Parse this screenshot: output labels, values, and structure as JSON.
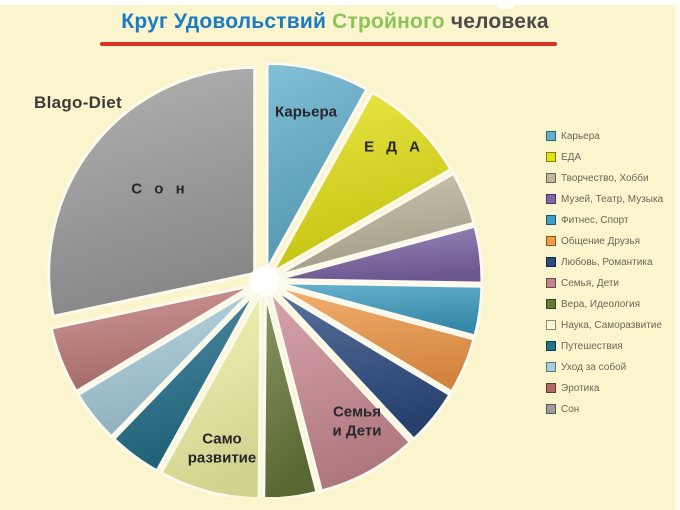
{
  "slide": {
    "background": "#FAF5CD",
    "watermark": "Blago-Diet"
  },
  "title": {
    "part_blue": "Круг Удовольствий",
    "part_green": "Стройного",
    "part_dark": "человека",
    "full": "Круг Удовольствий Стройного человека",
    "colors": {
      "blue": "#1B7BC4",
      "green": "#8FC25B",
      "dark": "#4D4B49",
      "underline": "#DC3124"
    }
  },
  "pie_labels": {
    "career": "Карьера",
    "food": "Е Д А",
    "sleep": "С о н",
    "family": "Семья\nи Дети",
    "selfdev": "Само\nразвитие"
  },
  "legend": {
    "position": "right",
    "items": [
      {
        "key": "career",
        "label": "Карьера",
        "color": "#5FAECB"
      },
      {
        "key": "food",
        "label": "ЕДА",
        "color": "#E4E112"
      },
      {
        "key": "creativity",
        "label": "Творчество, Хобби",
        "color": "#BEB69D"
      },
      {
        "key": "museum",
        "label": "Музей, Театр, Музыка",
        "color": "#7D66A7"
      },
      {
        "key": "fitness",
        "label": "Фитнес, Спорт",
        "color": "#3E9EC2"
      },
      {
        "key": "friends",
        "label": "Общение Друзья",
        "color": "#F49B49"
      },
      {
        "key": "love",
        "label": "Любовь, Романтика",
        "color": "#2C4C80"
      },
      {
        "key": "family",
        "label": "Семья, Дети",
        "color": "#C2838C"
      },
      {
        "key": "faith",
        "label": "Вера, Идеология",
        "color": "#66793A"
      },
      {
        "key": "selfdev",
        "label": "Наука, Саморазвитие",
        "color": "#FAFAD8"
      },
      {
        "key": "travel",
        "label": "Путешествия",
        "color": "#23708A"
      },
      {
        "key": "selfcare",
        "label": "Уход за собой",
        "color": "#A8CDDC"
      },
      {
        "key": "erotica",
        "label": "Эротика",
        "color": "#B06A66"
      },
      {
        "key": "sleep",
        "label": "Сон",
        "color": "#9D9D9D"
      }
    ]
  },
  "chart_data": {
    "type": "pie",
    "title": "Круг Удовольствий Стройного человека",
    "legend_position": "right",
    "style": "exploded pie, white gaps between slices, clockwise from 12 o'clock",
    "units": "percent of circle, estimated from slice angles",
    "slices": [
      {
        "key": "career",
        "label": "Карьера",
        "color": "#5FAECB",
        "start_deg": 0,
        "end_deg": 29,
        "value_pct": 8.1
      },
      {
        "key": "food",
        "label": "ЕДА",
        "color": "#E4E112",
        "start_deg": 29,
        "end_deg": 60,
        "value_pct": 8.6
      },
      {
        "key": "creativity",
        "label": "Творчество, Хобби",
        "color": "#BEB69D",
        "start_deg": 60,
        "end_deg": 75,
        "value_pct": 4.2
      },
      {
        "key": "museum",
        "label": "Музей, Театр, Музыка",
        "color": "#7D66A7",
        "start_deg": 75,
        "end_deg": 91,
        "value_pct": 4.4
      },
      {
        "key": "fitness",
        "label": "Фитнес, Спорт",
        "color": "#3E9EC2",
        "start_deg": 91,
        "end_deg": 105,
        "value_pct": 3.9
      },
      {
        "key": "friends",
        "label": "Общение Друзья",
        "color": "#F49B49",
        "start_deg": 105,
        "end_deg": 121,
        "value_pct": 4.4
      },
      {
        "key": "love",
        "label": "Любовь, Романтика",
        "color": "#2C4C80",
        "start_deg": 121,
        "end_deg": 137,
        "value_pct": 4.4
      },
      {
        "key": "family",
        "label": "Семья, Дети",
        "color": "#CC8A93",
        "start_deg": 137,
        "end_deg": 165.5,
        "value_pct": 7.9
      },
      {
        "key": "faith",
        "label": "Вера, Идеология",
        "color": "#66793A",
        "start_deg": 165.5,
        "end_deg": 180.5,
        "value_pct": 4.2
      },
      {
        "key": "selfdev",
        "label": "Наука, Саморазвитие",
        "color": "#F4F5A6",
        "start_deg": 180.5,
        "end_deg": 209,
        "value_pct": 7.9
      },
      {
        "key": "travel",
        "label": "Путешествия",
        "color": "#23708A",
        "start_deg": 209,
        "end_deg": 224,
        "value_pct": 4.2
      },
      {
        "key": "selfcare",
        "label": "Уход за собой",
        "color": "#A8CDDC",
        "start_deg": 224,
        "end_deg": 239,
        "value_pct": 4.2
      },
      {
        "key": "erotica",
        "label": "Эротика",
        "color": "#C07B79",
        "start_deg": 239,
        "end_deg": 258,
        "value_pct": 5.3
      },
      {
        "key": "sleep",
        "label": "Сон",
        "color": "#9D9D9D",
        "start_deg": 258,
        "end_deg": 360,
        "value_pct": 28.3
      }
    ]
  }
}
